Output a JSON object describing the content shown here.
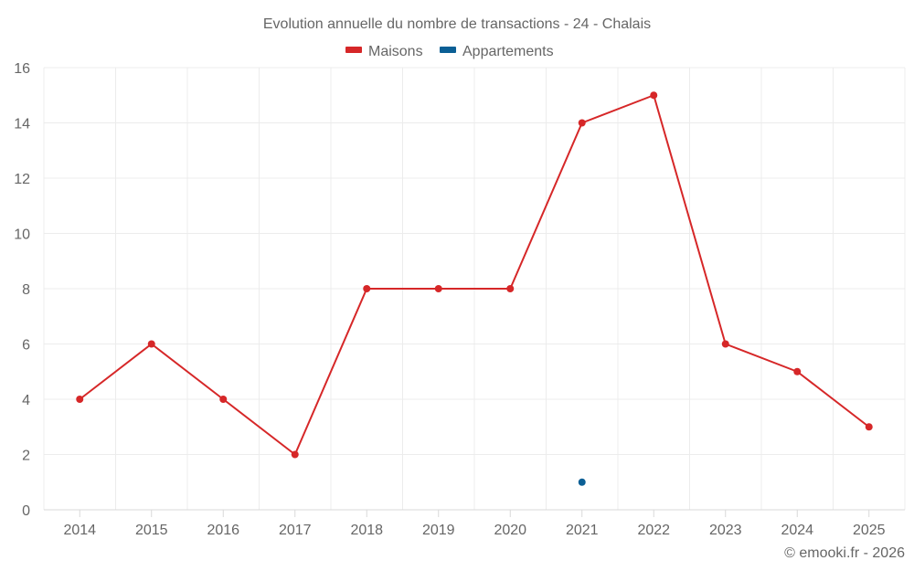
{
  "chart_data": {
    "type": "line",
    "title": "Evolution annuelle du nombre de transactions - 24 - Chalais",
    "categories": [
      "2014",
      "2015",
      "2016",
      "2017",
      "2018",
      "2019",
      "2020",
      "2021",
      "2022",
      "2023",
      "2024",
      "2025"
    ],
    "series": [
      {
        "name": "Maisons",
        "color": "#d62728",
        "values": [
          4,
          6,
          4,
          2,
          8,
          8,
          8,
          14,
          15,
          6,
          5,
          3
        ]
      },
      {
        "name": "Appartements",
        "color": "#0b5f95",
        "values": [
          null,
          null,
          null,
          null,
          null,
          null,
          null,
          1,
          null,
          null,
          null,
          null
        ]
      }
    ],
    "ylim": [
      0,
      16
    ],
    "yticks": [
      0,
      2,
      4,
      6,
      8,
      10,
      12,
      14,
      16
    ],
    "xlabel": "",
    "ylabel": "",
    "grid": true,
    "legend": "top-center"
  },
  "credit": "© emooki.fr - 2026"
}
